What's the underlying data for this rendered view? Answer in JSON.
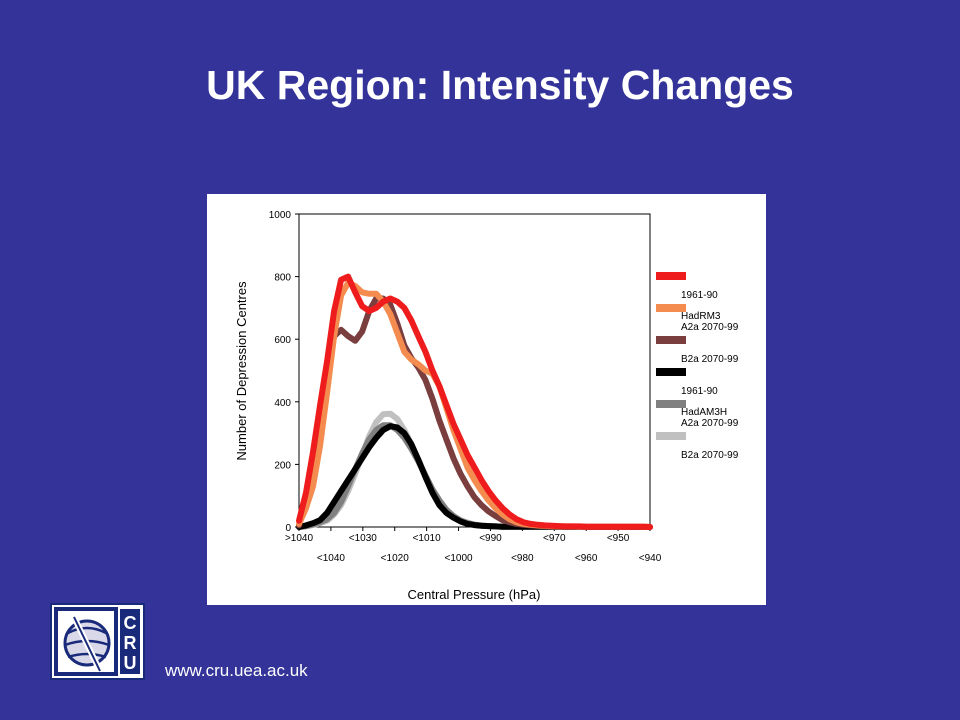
{
  "slide": {
    "title": "UK Region: Intensity Changes",
    "website": "www.cru.uea.ac.uk",
    "logo_letters": "CRU",
    "background_color": "#333399"
  },
  "chart_data": {
    "type": "line",
    "ylabel": "Number of Depression Centres",
    "xlabel": "Central Pressure (hPa)",
    "ylim": [
      0,
      1000
    ],
    "yticks": [
      "0",
      "200",
      "400",
      "600",
      "800",
      "1000"
    ],
    "xticks_row1": [
      ">1040",
      "<1030",
      "<1010",
      "<990",
      "<970",
      "<950"
    ],
    "xticks_row2": [
      "<1040",
      "<1020",
      "<1000",
      "<980",
      "<960",
      "<940"
    ],
    "x": [
      1040,
      1038,
      1036,
      1034,
      1032,
      1030,
      1028,
      1026,
      1024,
      1022,
      1020,
      1018,
      1016,
      1014,
      1012,
      1010,
      1008,
      1006,
      1004,
      1002,
      1000,
      998,
      996,
      994,
      992,
      990,
      988,
      986,
      984,
      982,
      980,
      978,
      976,
      974,
      972,
      970,
      968,
      966,
      964,
      962,
      960,
      958,
      956,
      954,
      952,
      950,
      948,
      946,
      944,
      942,
      940
    ],
    "series": [
      {
        "name": "1961-90",
        "color": "#ee1c1c",
        "width": 6,
        "values": [
          20,
          110,
          240,
          390,
          530,
          690,
          790,
          800,
          750,
          705,
          690,
          700,
          720,
          730,
          720,
          700,
          660,
          610,
          560,
          500,
          450,
          390,
          330,
          280,
          230,
          190,
          150,
          115,
          85,
          60,
          40,
          25,
          15,
          10,
          7,
          5,
          4,
          3,
          2,
          2,
          2,
          1,
          1,
          1,
          1,
          1,
          1,
          1,
          1,
          1,
          0
        ]
      },
      {
        "name": "A2a 2070-99",
        "color": "#f48c50",
        "width": 6,
        "values": [
          10,
          60,
          130,
          260,
          430,
          610,
          740,
          780,
          770,
          750,
          745,
          745,
          720,
          680,
          620,
          560,
          535,
          520,
          500,
          490,
          450,
          380,
          310,
          250,
          190,
          150,
          115,
          85,
          60,
          40,
          25,
          15,
          10,
          7,
          5,
          4,
          3,
          2,
          2,
          2,
          1,
          1,
          1,
          1,
          1,
          1,
          1,
          1,
          1,
          1,
          0
        ]
      },
      {
        "name": "B2a 2070-99",
        "color": "#7a3e3e",
        "width": 6,
        "values": [
          5,
          80,
          220,
          380,
          500,
          610,
          630,
          610,
          595,
          625,
          690,
          730,
          730,
          710,
          650,
          580,
          540,
          510,
          470,
          410,
          340,
          280,
          220,
          170,
          130,
          95,
          70,
          50,
          35,
          22,
          15,
          10,
          7,
          5,
          4,
          3,
          2,
          2,
          1,
          1,
          1,
          1,
          1,
          1,
          1,
          1,
          1,
          1,
          1,
          1,
          0
        ]
      },
      {
        "name": "1961-90",
        "color": "#000000",
        "width": 6,
        "values": [
          0,
          5,
          12,
          22,
          45,
          80,
          115,
          150,
          185,
          220,
          255,
          285,
          310,
          322,
          318,
          300,
          265,
          215,
          160,
          110,
          70,
          45,
          30,
          18,
          10,
          6,
          4,
          3,
          2,
          1,
          1,
          1,
          1,
          1,
          1,
          1,
          1,
          1,
          1,
          1,
          1,
          0,
          0,
          0,
          0,
          0,
          0,
          0,
          0,
          0,
          0
        ]
      },
      {
        "name": "A2a 2070-99",
        "color": "#808080",
        "width": 6,
        "values": [
          0,
          3,
          8,
          15,
          25,
          45,
          80,
          130,
          185,
          235,
          280,
          310,
          325,
          325,
          310,
          285,
          250,
          210,
          165,
          120,
          85,
          55,
          35,
          20,
          12,
          7,
          4,
          3,
          2,
          1,
          1,
          1,
          1,
          1,
          1,
          1,
          1,
          1,
          1,
          1,
          1,
          0,
          0,
          0,
          0,
          0,
          0,
          0,
          0,
          0,
          0
        ]
      },
      {
        "name": "B2a 2070-99",
        "color": "#c0c0c0",
        "width": 6,
        "values": [
          0,
          2,
          6,
          12,
          20,
          40,
          70,
          115,
          170,
          230,
          290,
          335,
          360,
          362,
          345,
          310,
          265,
          215,
          165,
          120,
          85,
          55,
          35,
          22,
          14,
          8,
          5,
          3,
          2,
          1,
          1,
          1,
          1,
          1,
          1,
          1,
          1,
          1,
          1,
          1,
          1,
          0,
          0,
          0,
          0,
          0,
          0,
          0,
          0,
          0,
          0
        ]
      }
    ],
    "legend": {
      "placement": "right",
      "groups": [
        {
          "label": "HadRM3",
          "entries": [
            "1961-90",
            "A2a 2070-99",
            "B2a 2070-99"
          ]
        },
        {
          "label": "HadAM3H",
          "entries": [
            "1961-90",
            "A2a 2070-99",
            "B2a 2070-99"
          ]
        }
      ]
    },
    "grid": false
  }
}
